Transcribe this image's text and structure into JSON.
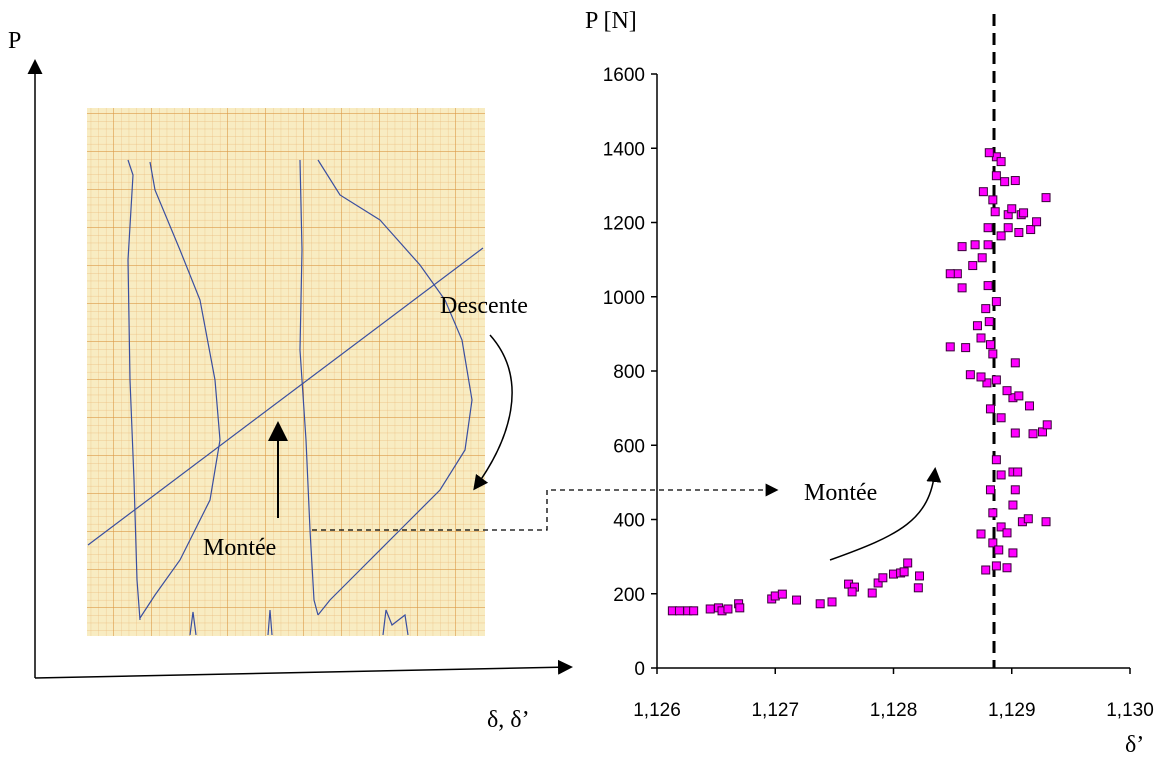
{
  "diagram": {
    "y_axis_label": "P",
    "x_axis_label": "δ, δ’",
    "descent_label": "Descente",
    "ascent_label": "Montée"
  },
  "chart_data": {
    "type": "scatter",
    "ylabel": "P [N]",
    "xlabel": "δ’",
    "annotation": "Montée",
    "color": "#ff00ff",
    "vline_x": 1.12885,
    "xlim": [
      1.126,
      1.13
    ],
    "xticks": [
      {
        "value": 1.126,
        "label": "1,126"
      },
      {
        "value": 1.127,
        "label": "1,127"
      },
      {
        "value": 1.128,
        "label": "1,128"
      },
      {
        "value": 1.129,
        "label": "1,129"
      },
      {
        "value": 1.13,
        "label": "1,130"
      }
    ],
    "ylim": [
      0,
      1600
    ],
    "yticks": [
      0,
      200,
      400,
      600,
      800,
      1000,
      1200,
      1400,
      1600
    ],
    "x": [
      1.12613,
      1.12619,
      1.12626,
      1.12631,
      1.12645,
      1.12652,
      1.12655,
      1.1266,
      1.12669,
      1.1267,
      1.12697,
      1.127,
      1.12706,
      1.12718,
      1.12738,
      1.12748,
      1.12762,
      1.12767,
      1.12765,
      1.12782,
      1.12787,
      1.12791,
      1.128,
      1.12806,
      1.12812,
      1.12809,
      1.12822,
      1.12821,
      1.12878,
      1.12887,
      1.12896,
      1.12874,
      1.12884,
      1.12889,
      1.12901,
      1.12909,
      1.12914,
      1.12929,
      1.12891,
      1.12896,
      1.12884,
      1.12901,
      1.12903,
      1.12882,
      1.12891,
      1.12901,
      1.12905,
      1.12887,
      1.12918,
      1.12926,
      1.1293,
      1.12903,
      1.12891,
      1.12915,
      1.12882,
      1.12901,
      1.12906,
      1.12896,
      1.12887,
      1.12879,
      1.12865,
      1.12874,
      1.12903,
      1.12884,
      1.12882,
      1.12874,
      1.12848,
      1.12861,
      1.12871,
      1.12881,
      1.12878,
      1.12887,
      1.1288,
      1.12858,
      1.12854,
      1.12848,
      1.12867,
      1.12875,
      1.1288,
      1.12869,
      1.12858,
      1.1288,
      1.12891,
      1.12897,
      1.12906,
      1.12916,
      1.12921,
      1.12908,
      1.12897,
      1.12886,
      1.1291,
      1.129,
      1.12929,
      1.12903,
      1.12894,
      1.12887,
      1.12876,
      1.12884,
      1.12887,
      1.12881,
      1.12891
    ],
    "values": [
      154,
      154,
      154,
      154,
      159,
      162,
      154,
      159,
      173,
      162,
      186,
      194,
      199,
      183,
      173,
      178,
      226,
      218,
      205,
      202,
      229,
      243,
      253,
      256,
      283,
      259,
      248,
      216,
      264,
      275,
      270,
      361,
      337,
      318,
      310,
      394,
      402,
      394,
      380,
      364,
      418,
      439,
      480,
      480,
      520,
      528,
      528,
      561,
      631,
      636,
      655,
      633,
      674,
      706,
      698,
      728,
      733,
      747,
      776,
      768,
      790,
      784,
      822,
      846,
      871,
      889,
      865,
      863,
      922,
      933,
      968,
      987,
      1030,
      1024,
      1062,
      1062,
      1084,
      1105,
      1140,
      1140,
      1135,
      1186,
      1164,
      1186,
      1173,
      1181,
      1202,
      1221,
      1221,
      1229,
      1226,
      1237,
      1267,
      1313,
      1310,
      1326,
      1283,
      1261,
      1377,
      1388,
      1364
    ]
  }
}
